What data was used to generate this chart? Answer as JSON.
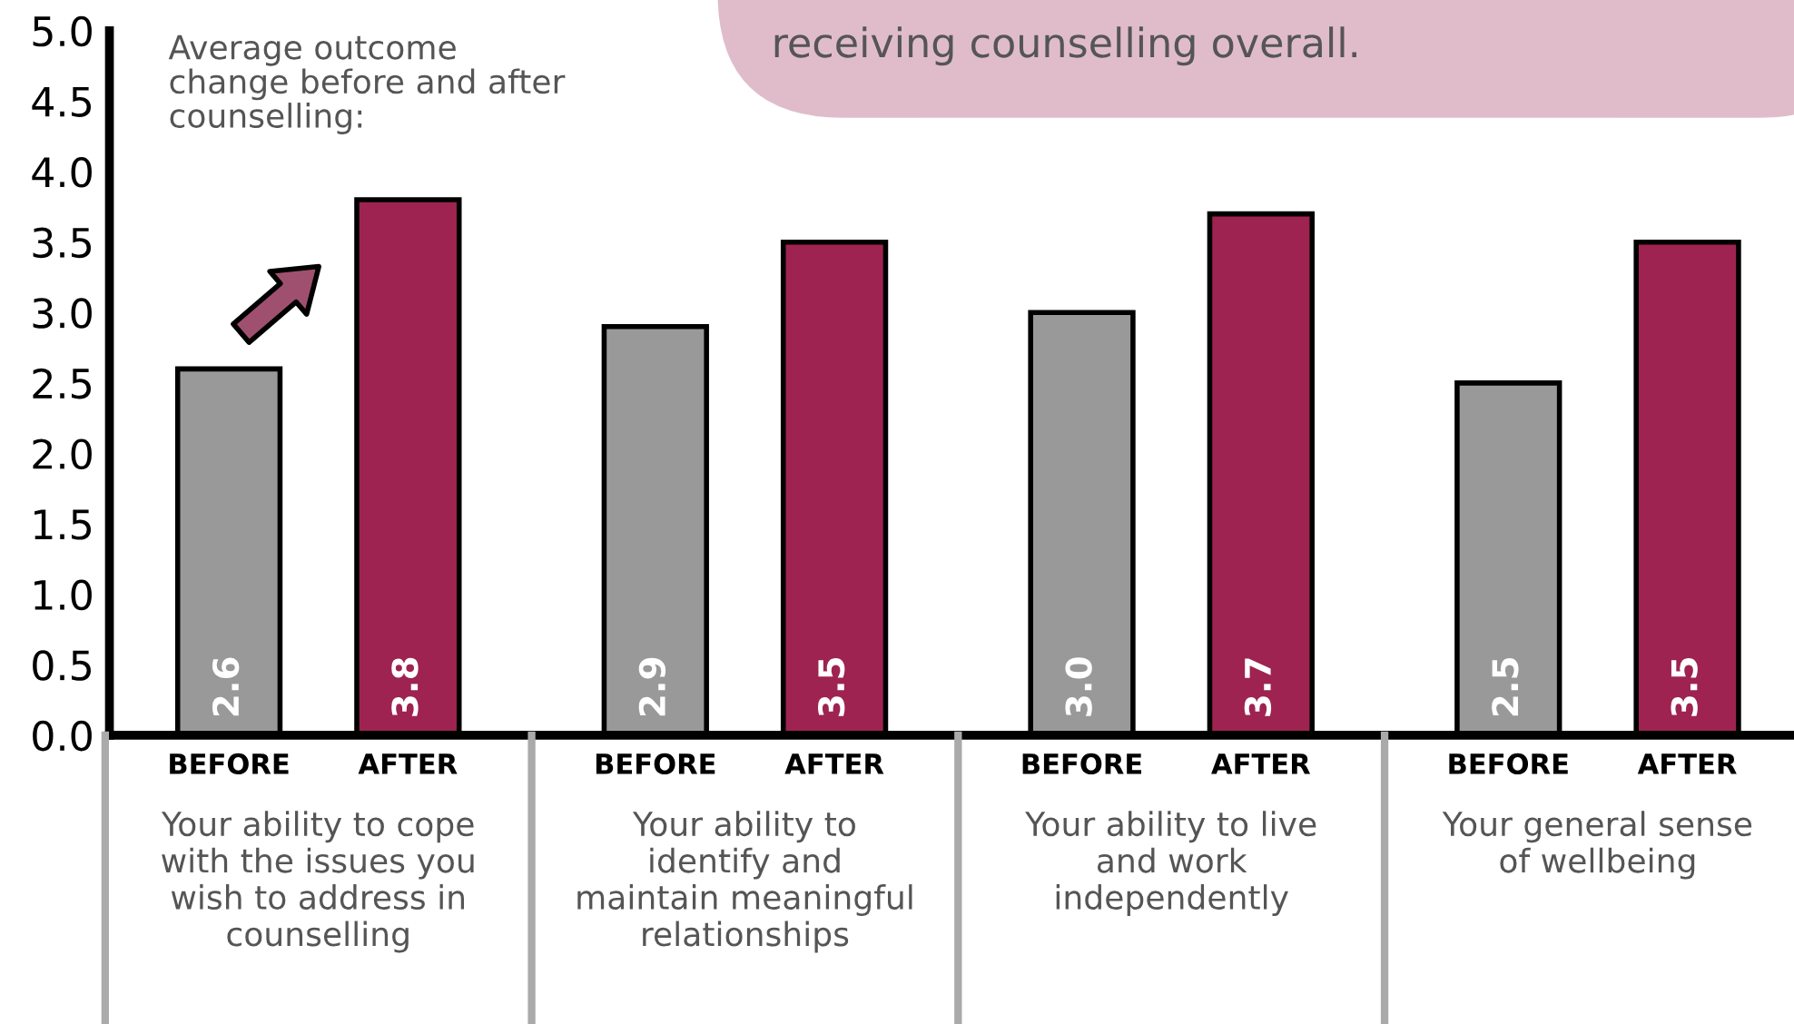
{
  "chart_data": {
    "type": "bar",
    "categories": [
      "Your ability to cope\nwith the issues you\nwish to address in\ncounselling",
      "Your ability to\nidentify and\nmaintain meaningful\nrelationships",
      "Your ability to live\nand work\nindependently",
      "Your general sense\nof wellbeing"
    ],
    "series": [
      {
        "name": "BEFORE",
        "color": "#999999",
        "values": [
          2.6,
          2.9,
          3.0,
          2.5
        ],
        "value_labels": [
          "2.6",
          "2.9",
          "3.0",
          "2.5"
        ]
      },
      {
        "name": "AFTER",
        "color": "#9e2350",
        "values": [
          3.8,
          3.5,
          3.7,
          3.5
        ],
        "value_labels": [
          "3.8",
          "3.5",
          "3.7",
          "3.5"
        ]
      }
    ],
    "ylim": [
      0,
      5
    ],
    "yticks": [
      {
        "value": 0,
        "label": "0.0"
      },
      {
        "value": 0.5,
        "label": "0.5"
      },
      {
        "value": 1,
        "label": "1.0"
      },
      {
        "value": 1.5,
        "label": "1.5"
      },
      {
        "value": 2,
        "label": "2.0"
      },
      {
        "value": 2.5,
        "label": "2.5"
      },
      {
        "value": 3,
        "label": "3.0"
      },
      {
        "value": 3.5,
        "label": "3.5"
      },
      {
        "value": 4,
        "label": "4.0"
      },
      {
        "value": 4.5,
        "label": "4.5"
      },
      {
        "value": 5,
        "label": "5.0"
      }
    ],
    "grid": false,
    "annotations": [
      "Average outcome\nchange before and after\ncounselling:",
      "receiving counselling overall."
    ]
  }
}
